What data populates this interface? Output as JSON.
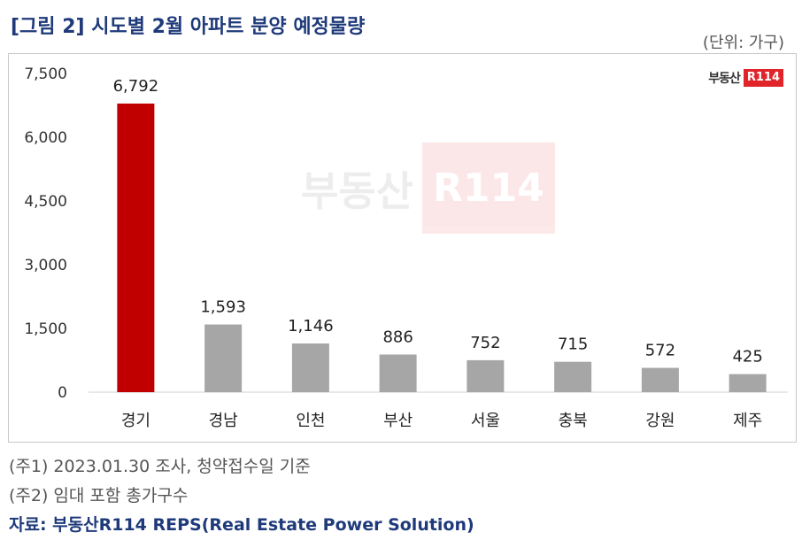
{
  "header": {
    "title": "[그림 2] 시도별 2월 아파트 분양 예정물량",
    "unit": "(단위: 가구)"
  },
  "logo": {
    "text": "부동산",
    "box": "R114"
  },
  "watermark": {
    "text": "부동산",
    "box": "R114"
  },
  "notes": [
    "(주1) 2023.01.30 조사, 청약접수일 기준",
    "(주2) 임대 포함 총가구수"
  ],
  "source": "자료: 부동산R114 REPS(Real Estate Power Solution)",
  "colors": {
    "highlight": "#c00000",
    "bar": "#a6a6a6",
    "title": "#1f3a7a",
    "logo_red": "#e0242a"
  },
  "chart_data": {
    "type": "bar",
    "title": "[그림 2] 시도별 2월 아파트 분양 예정물량",
    "xlabel": "",
    "ylabel": "",
    "categories": [
      "경기",
      "경남",
      "인천",
      "부산",
      "서울",
      "충북",
      "강원",
      "제주"
    ],
    "values": [
      6792,
      1593,
      1146,
      886,
      752,
      715,
      572,
      425
    ],
    "value_labels": [
      "6,792",
      "1,593",
      "1,146",
      "886",
      "752",
      "715",
      "572",
      "425"
    ],
    "ylim": [
      0,
      7500
    ],
    "yticks": [
      0,
      1500,
      3000,
      4500,
      6000,
      7500
    ],
    "ytick_labels": [
      "0",
      "1,500",
      "3,000",
      "4,500",
      "6,000",
      "7,500"
    ],
    "highlight_index": 0,
    "grid": false,
    "legend": "none"
  }
}
